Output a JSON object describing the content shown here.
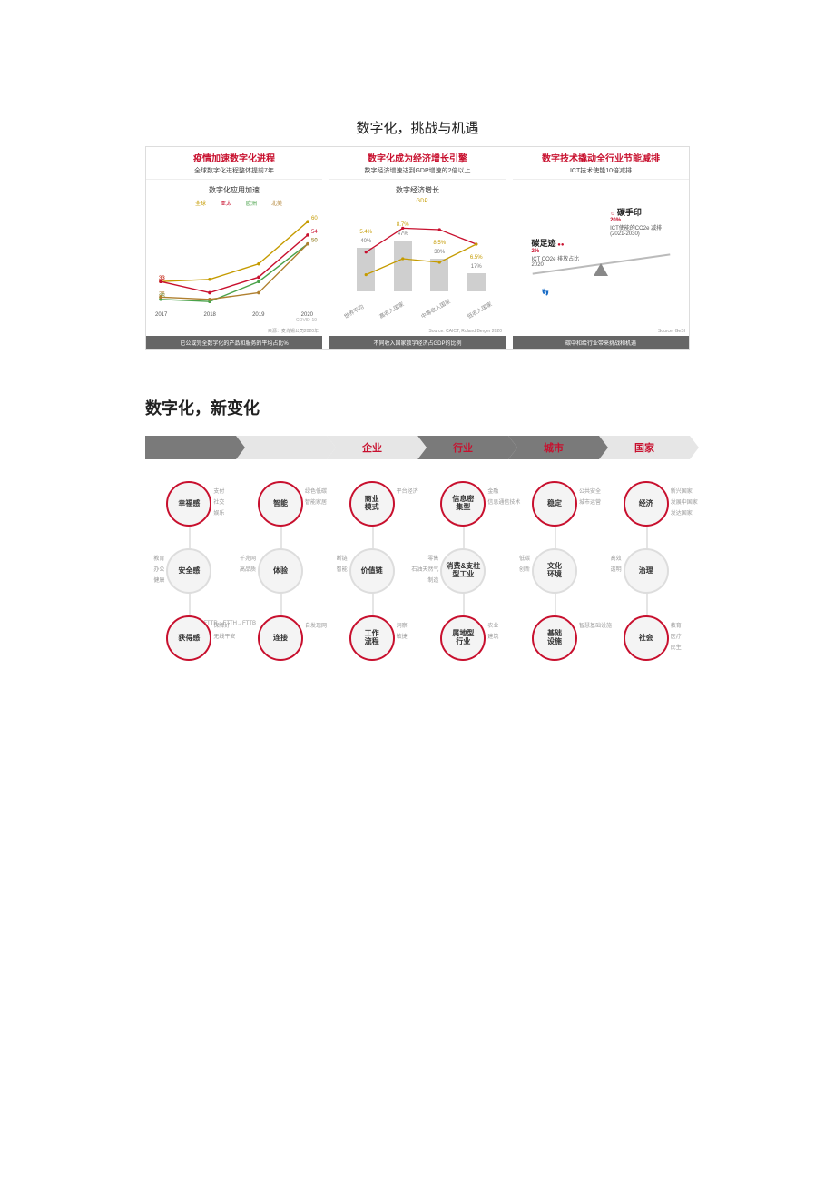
{
  "page_title_1": "数字化，挑战与机遇",
  "page_title_2": "数字化，新变化",
  "colors": {
    "accent_red": "#c8102e",
    "grey_bar": "#cfcfcf",
    "grey_dark": "#7a7a7a",
    "grey_light": "#e6e6e6",
    "text": "#333333",
    "bg": "#ffffff",
    "series_global": "#c59b00",
    "series_asia": "#c8102e",
    "series_eu": "#4aa24a",
    "series_na": "#b08030"
  },
  "panels": {
    "p1": {
      "title_red": "疫情加速数字化进程",
      "subtitle": "全球数字化进程整体提前7年",
      "mini_title": "数字化应用加速",
      "legend": [
        "全球",
        "亚太",
        "欧洲",
        "北美"
      ],
      "x_labels": [
        "2017",
        "2018",
        "2019",
        "2020"
      ],
      "x_note": "COVID-19",
      "series": {
        "全球": {
          "color": "#c59b00",
          "values": [
            33,
            34,
            41,
            60
          ]
        },
        "亚太": {
          "color": "#c8102e",
          "values": [
            33,
            28,
            35,
            54
          ]
        },
        "欧洲": {
          "color": "#4aa24a",
          "values": [
            25,
            24,
            33,
            50
          ]
        },
        "北美": {
          "color": "#b08030",
          "values": [
            26,
            25,
            28,
            50
          ]
        }
      },
      "ylim": [
        20,
        65
      ],
      "source": "来源：麦肯锡公司2020年",
      "footer": "已公或完全数字化的产品和服务的平均占比%"
    },
    "p2": {
      "title_red": "数字化成为经济增长引擎",
      "subtitle": "数字经济增速达到GDP增速的2倍以上",
      "mini_title": "数字经济增长",
      "legend_line": "GDP",
      "x_labels": [
        "世界平均",
        "高收入国家",
        "中等收入国家",
        "低收入国家"
      ],
      "bar_values_pct": [
        40,
        47,
        30,
        17
      ],
      "gdp_line_pct": [
        2.3,
        4.5,
        4.0,
        6.5
      ],
      "top_line_pct": [
        5.4,
        8.7,
        8.5,
        6.5
      ],
      "ylim_pct": [
        0,
        9
      ],
      "bar_ylim_pct": [
        0,
        60
      ],
      "source": "Source: CAICT, Roland Berger 2020",
      "footer": "不同收入国家数字经济占GDP的比例"
    },
    "p3": {
      "title_red": "数字技术撬动全行业节能减排",
      "subtitle": "ICT技术使能10倍减排",
      "left": {
        "big": "碳足迹",
        "pct": "2%",
        "note": "ICT CO2e 排放占比 2020"
      },
      "right": {
        "big": "碳手印",
        "pct": "20%",
        "note": "ICT使能的CO2e 减排 (2021-2030)"
      },
      "source": "Source: GeSI",
      "footer": "碳中和给行业带来挑战和机遇"
    }
  },
  "chevrons": [
    "",
    "",
    "企业",
    "行业",
    "城市",
    "国家"
  ],
  "columns": [
    {
      "nodes": [
        {
          "label": "幸福感",
          "accent": true,
          "tags_r": [
            "支付",
            "社交",
            "娱乐"
          ]
        },
        {
          "label": "安全感",
          "accent": false,
          "tags_l": [
            "教育",
            "办公",
            "健康"
          ]
        },
        {
          "label": "获得感",
          "accent": true,
          "tags_r": [
            "保障好",
            "无线平安"
          ]
        }
      ]
    },
    {
      "nodes": [
        {
          "label": "智能",
          "accent": true,
          "tags_r": [
            "绿色低碳",
            "智能家居"
          ]
        },
        {
          "label": "体验",
          "accent": false,
          "tags_l": [
            "千兆网",
            "高品质"
          ]
        },
        {
          "label": "连接",
          "accent": true,
          "tags_l": [
            "FTTR→FTTH→FTTB"
          ],
          "tags_r": [
            "自发现网"
          ]
        }
      ]
    },
    {
      "nodes": [
        {
          "label": "商业\\n模式",
          "accent": true,
          "tags_r": [
            "平台经济"
          ]
        },
        {
          "label": "价值链",
          "accent": false,
          "tags_l": [
            "断链",
            "智能"
          ]
        },
        {
          "label": "工作\\n流程",
          "accent": true,
          "tags_r": [
            "洞察",
            "敏捷"
          ]
        }
      ]
    },
    {
      "nodes": [
        {
          "label": "信息密\\n集型",
          "accent": true,
          "tags_r": [
            "金融",
            "信息通信技术"
          ]
        },
        {
          "label": "消费&支柱\\n型工业",
          "accent": false,
          "tags_l": [
            "零售",
            "石油天然气",
            "制造"
          ]
        },
        {
          "label": "属地型\\n行业",
          "accent": true,
          "tags_r": [
            "农业",
            "建筑"
          ]
        }
      ]
    },
    {
      "nodes": [
        {
          "label": "稳定",
          "accent": true,
          "tags_r": [
            "公共安全",
            "城市运营"
          ]
        },
        {
          "label": "文化\\n环境",
          "accent": false,
          "tags_l": [
            "低碳",
            "创新"
          ]
        },
        {
          "label": "基础\\n设施",
          "accent": true,
          "tags_r": [
            "智慧基础设施"
          ]
        }
      ]
    },
    {
      "nodes": [
        {
          "label": "经济",
          "accent": true,
          "tags_r": [
            "新兴国家",
            "发展中国家",
            "发达国家"
          ]
        },
        {
          "label": "治理",
          "accent": false,
          "tags_l": [
            "高效",
            "透明"
          ]
        },
        {
          "label": "社会",
          "accent": true,
          "tags_r": [
            "教育",
            "医疗",
            "民生"
          ]
        }
      ]
    }
  ]
}
